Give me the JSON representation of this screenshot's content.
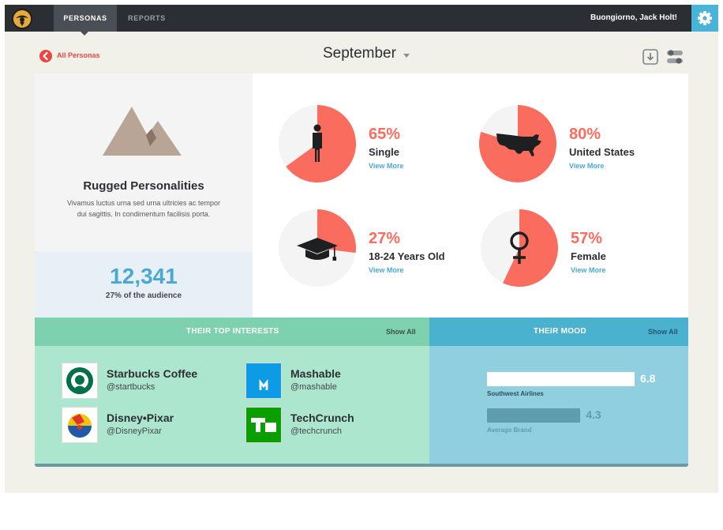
{
  "topbar": {
    "tabs": [
      "PERSONAS",
      "REPORTS"
    ],
    "greeting": "Buongiorno, Jack Holt!",
    "icons": {
      "logo": "pilot-logo-icon",
      "settings": "gear-icon"
    }
  },
  "subheader": {
    "back_label": "All Personas",
    "month": "September",
    "tools": [
      "download-icon",
      "toggle-icon"
    ]
  },
  "persona": {
    "title": "Rugged Personalities",
    "description": "Vivamus luctus urna sed urna ultricies ac tempor dui sagittis. In condimentum facilisis porta.",
    "audience_count": "12,341",
    "audience_label": "27% of the audience"
  },
  "stats": [
    {
      "pct_text": "65%",
      "fraction": 0.65,
      "label": "Single",
      "link": "View More",
      "icon": "person-icon"
    },
    {
      "pct_text": "80%",
      "fraction": 0.8,
      "label": "United States",
      "link": "View More",
      "icon": "usa-map-icon"
    },
    {
      "pct_text": "27%",
      "fraction": 0.27,
      "label": "18-24 Years Old",
      "link": "View More",
      "icon": "graduation-cap-icon"
    },
    {
      "pct_text": "57%",
      "fraction": 0.57,
      "label": "Female",
      "link": "View More",
      "icon": "female-symbol-icon"
    }
  ],
  "interests": {
    "title": "THEIR TOP INTERESTS",
    "show_all": "Show All",
    "items": [
      {
        "name": "Starbucks Coffee",
        "handle": "@startbucks",
        "icon": "starbucks-logo-icon"
      },
      {
        "name": "Mashable",
        "handle": "@mashable",
        "icon": "mashable-logo-icon"
      },
      {
        "name": "Disney•Pixar",
        "handle": "@DisneyPixar",
        "icon": "pixar-ball-icon"
      },
      {
        "name": "TechCrunch",
        "handle": "@techcrunch",
        "icon": "techcrunch-logo-icon"
      }
    ]
  },
  "mood": {
    "title": "THEIR MOOD",
    "show_all": "Show All",
    "scale_max": 10,
    "bars": [
      {
        "label": "Southwest Airlines",
        "value": 6.8,
        "value_text": "6.8"
      },
      {
        "label": "Average Brand",
        "value": 4.3,
        "value_text": "4.3"
      }
    ]
  },
  "colors": {
    "accent_red": "#e8473f",
    "pie_fill": "#fa6d5e",
    "link_blue": "#4aa8d6",
    "interests_green": "#7ed1ae",
    "mood_blue": "#4ab1cf"
  }
}
